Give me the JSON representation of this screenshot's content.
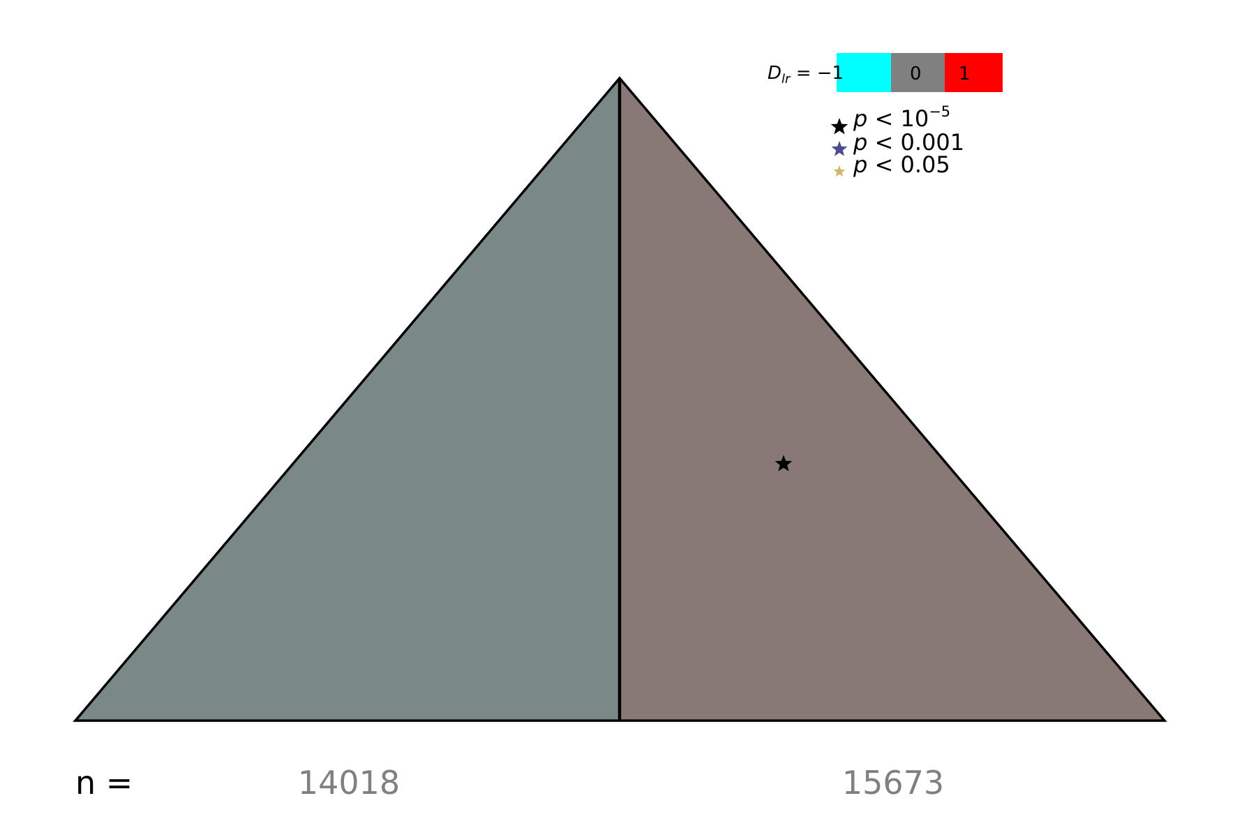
{
  "chart_data": {
    "type": "other",
    "title": "",
    "regions": [
      {
        "name": "left",
        "D_lr": -0.1,
        "color": "#7a8888",
        "n": "14018"
      },
      {
        "name": "right",
        "D_lr": 0.07,
        "color": "#887977",
        "n": "15673"
      }
    ],
    "significance_markers": [
      {
        "region": "right",
        "level": "p < 10^-5",
        "color": "#000000"
      }
    ],
    "n_label": "n =",
    "colorbar": {
      "label_var": "D",
      "label_sub": "lr",
      "label_rest": " = −",
      "ticks": [
        "1",
        "0",
        "1"
      ],
      "colors": [
        "#00ffff",
        "#808080",
        "#ff0000"
      ],
      "range": [
        -1,
        1
      ]
    },
    "legend": [
      {
        "var": "p",
        "text": " < 10",
        "sup": "−5",
        "color": "#000000"
      },
      {
        "var": "p",
        "text": " < 0.001",
        "sup": "",
        "color": "#4b4b8f"
      },
      {
        "var": "p",
        "text": " < 0.05",
        "sup": "",
        "color": "#d4b66a"
      }
    ],
    "legend_placement": "top-right"
  }
}
